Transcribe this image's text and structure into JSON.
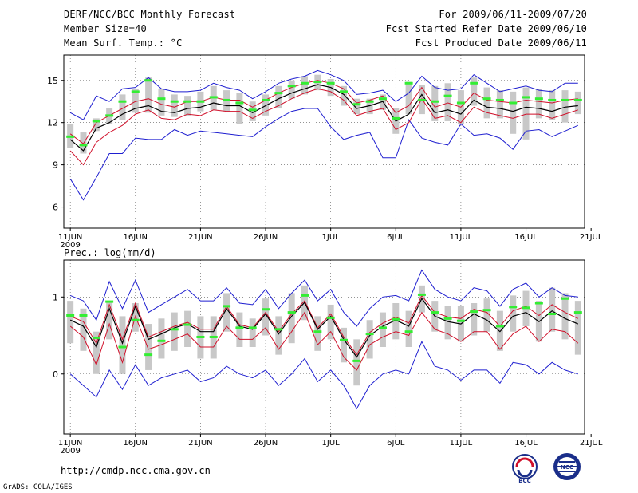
{
  "header": {
    "title": "DERF/NCC/BCC Monthly Forecast",
    "member_size": "Member Size=40",
    "variable": "Mean Surf. Temp.: °C",
    "forecast_period": "For 2009/06/11-2009/07/20",
    "start_date": "Fcst Started Refer Date 2009/06/10",
    "produced_date": "Fcst Produced Date 2009/06/11"
  },
  "footer": {
    "url": "http://cmdp.ncc.cma.gov.cn",
    "credit": "GrADS: COLA/IGES",
    "logo_left": "BCC",
    "logo_right": "NCC"
  },
  "colors": {
    "ensemble_mean": "#000000",
    "spread": "#d0102a",
    "extreme": "#1f1fd0",
    "member_box": "#c8c8c8",
    "median": "#33ee33",
    "grid": "#555555"
  },
  "chart_data": [
    {
      "name": "temperature",
      "type": "line",
      "title": "Mean Surf. Temp.: °C",
      "ylabel": "°C",
      "ylim": [
        4.5,
        16.8
      ],
      "yticks": [
        6,
        9,
        12,
        15
      ],
      "xlim": [
        0.5,
        40.5
      ],
      "xticks": [
        {
          "day": 1,
          "label": "11JUN",
          "sub": "2009"
        },
        {
          "day": 6,
          "label": "16JUN"
        },
        {
          "day": 11,
          "label": "21JUN"
        },
        {
          "day": 16,
          "label": "26JUN"
        },
        {
          "day": 21,
          "label": "1JUL"
        },
        {
          "day": 26,
          "label": "6JUL"
        },
        {
          "day": 31,
          "label": "11JUL"
        },
        {
          "day": 36,
          "label": "16JUL"
        },
        {
          "day": 41,
          "label": "21JUL"
        }
      ],
      "days": [
        1,
        2,
        3,
        4,
        5,
        6,
        7,
        8,
        9,
        10,
        11,
        12,
        13,
        14,
        15,
        16,
        17,
        18,
        19,
        20,
        21,
        22,
        23,
        24,
        25,
        26,
        27,
        28,
        29,
        30,
        31,
        32,
        33,
        34,
        35,
        36,
        37,
        38,
        39,
        40
      ],
      "series": [
        {
          "name": "ensemble mean",
          "role": "mean",
          "values": [
            10.8,
            10.0,
            11.6,
            12.0,
            12.6,
            13.0,
            13.2,
            12.8,
            12.7,
            13.0,
            13.1,
            13.4,
            13.2,
            13.2,
            12.7,
            13.2,
            13.7,
            14.1,
            14.4,
            14.7,
            14.5,
            14.0,
            13.0,
            13.2,
            13.5,
            12.1,
            12.6,
            14.0,
            12.7,
            12.9,
            12.6,
            13.6,
            13.1,
            13.0,
            12.8,
            13.1,
            13.0,
            12.8,
            13.1,
            13.2
          ]
        },
        {
          "name": "mean + spread",
          "role": "upper",
          "values": [
            11.2,
            10.5,
            12.0,
            12.5,
            13.0,
            13.5,
            13.7,
            13.3,
            13.1,
            13.5,
            13.5,
            13.8,
            13.6,
            13.6,
            13.1,
            13.6,
            14.1,
            14.5,
            14.8,
            15.0,
            14.8,
            14.4,
            13.4,
            13.6,
            13.9,
            12.7,
            13.2,
            14.5,
            13.1,
            13.4,
            13.1,
            14.1,
            13.6,
            13.5,
            13.4,
            13.6,
            13.5,
            13.4,
            13.6,
            13.7
          ]
        },
        {
          "name": "mean - spread",
          "role": "lower",
          "values": [
            10.0,
            9.0,
            10.6,
            11.3,
            11.8,
            12.6,
            12.9,
            12.3,
            12.2,
            12.6,
            12.5,
            12.9,
            12.8,
            12.8,
            12.3,
            12.8,
            13.2,
            13.7,
            14.1,
            14.4,
            14.2,
            13.6,
            12.5,
            12.8,
            13.0,
            11.5,
            12.0,
            13.7,
            12.3,
            12.5,
            12.0,
            13.1,
            12.7,
            12.5,
            12.3,
            12.6,
            12.6,
            12.3,
            12.6,
            12.9
          ]
        },
        {
          "name": "ensemble maximum",
          "role": "max",
          "values": [
            12.7,
            12.2,
            13.9,
            13.5,
            14.4,
            14.5,
            15.2,
            14.4,
            14.2,
            14.2,
            14.3,
            14.8,
            14.5,
            14.3,
            13.7,
            14.2,
            14.8,
            15.1,
            15.3,
            15.7,
            15.4,
            15.0,
            14.0,
            14.1,
            14.3,
            13.5,
            14.1,
            15.3,
            14.5,
            14.3,
            14.4,
            15.4,
            14.8,
            14.2,
            14.4,
            14.6,
            14.3,
            14.2,
            14.8,
            14.8
          ]
        },
        {
          "name": "ensemble minimum",
          "role": "min",
          "values": [
            8.0,
            6.5,
            8.1,
            9.8,
            9.8,
            10.9,
            10.8,
            10.8,
            11.5,
            11.1,
            11.4,
            11.3,
            11.2,
            11.1,
            11.0,
            11.7,
            12.3,
            12.8,
            13.0,
            13.0,
            11.7,
            10.8,
            11.1,
            11.3,
            9.5,
            9.5,
            12.2,
            10.9,
            10.6,
            10.4,
            11.9,
            11.1,
            11.2,
            10.9,
            10.1,
            11.4,
            11.5,
            11.0,
            11.4,
            11.8
          ]
        },
        {
          "name": "ensemble median",
          "role": "median",
          "values": [
            11.0,
            10.4,
            12.1,
            12.5,
            13.5,
            14.2,
            15.0,
            13.7,
            13.5,
            13.5,
            13.5,
            13.8,
            13.6,
            13.4,
            12.9,
            13.6,
            14.1,
            14.6,
            14.8,
            14.9,
            14.8,
            14.2,
            13.3,
            13.5,
            13.7,
            12.3,
            14.8,
            13.6,
            13.5,
            13.9,
            13.4,
            14.8,
            13.7,
            13.6,
            13.4,
            13.8,
            13.7,
            13.6,
            13.6,
            13.6
          ]
        },
        {
          "name": "box top",
          "role": "q3",
          "values": [
            11.9,
            11.3,
            12.3,
            13.0,
            14.0,
            14.4,
            15.2,
            14.4,
            14.0,
            13.9,
            14.2,
            14.6,
            14.3,
            14.1,
            13.5,
            14.0,
            14.6,
            15.0,
            15.3,
            15.4,
            15.1,
            14.6,
            13.7,
            13.7,
            14.0,
            13.0,
            14.9,
            14.7,
            14.6,
            14.8,
            14.3,
            15.2,
            14.5,
            14.3,
            14.2,
            14.5,
            14.4,
            14.3,
            14.3,
            14.2
          ]
        },
        {
          "name": "box bottom",
          "role": "q1",
          "values": [
            10.2,
            9.8,
            11.4,
            11.9,
            12.2,
            12.7,
            12.7,
            12.5,
            12.4,
            12.5,
            12.8,
            12.9,
            12.8,
            11.9,
            12.1,
            12.5,
            13.0,
            13.7,
            14.0,
            14.3,
            13.9,
            13.2,
            12.6,
            12.6,
            12.9,
            11.2,
            12.6,
            12.6,
            12.1,
            12.1,
            11.9,
            13.2,
            12.3,
            12.3,
            11.2,
            10.8,
            12.3,
            12.2,
            12.0,
            12.6
          ]
        }
      ]
    },
    {
      "name": "precipitation",
      "type": "line",
      "title": "Prec.: log(mm/d)",
      "ylabel": "log(mm/d)",
      "ylim": [
        -0.78,
        1.48
      ],
      "yticks": [
        0,
        1
      ],
      "xlim": [
        0.5,
        40.5
      ],
      "xticks": [
        {
          "day": 1,
          "label": "11JUN",
          "sub": "2009"
        },
        {
          "day": 6,
          "label": "16JUN"
        },
        {
          "day": 11,
          "label": "21JUN"
        },
        {
          "day": 16,
          "label": "26JUN"
        },
        {
          "day": 21,
          "label": "1JUL"
        },
        {
          "day": 26,
          "label": "6JUL"
        },
        {
          "day": 31,
          "label": "11JUL"
        },
        {
          "day": 36,
          "label": "16JUL"
        },
        {
          "day": 41,
          "label": "21JUL"
        }
      ],
      "days": [
        1,
        2,
        3,
        4,
        5,
        6,
        7,
        8,
        9,
        10,
        11,
        12,
        13,
        14,
        15,
        16,
        17,
        18,
        19,
        20,
        21,
        22,
        23,
        24,
        25,
        26,
        27,
        28,
        29,
        30,
        31,
        32,
        33,
        34,
        35,
        36,
        37,
        38,
        39,
        40
      ],
      "series": [
        {
          "name": "ensemble mean",
          "role": "mean",
          "values": [
            0.7,
            0.62,
            0.35,
            0.85,
            0.4,
            0.88,
            0.45,
            0.52,
            0.6,
            0.65,
            0.55,
            0.55,
            0.85,
            0.62,
            0.58,
            0.78,
            0.52,
            0.75,
            0.93,
            0.58,
            0.75,
            0.45,
            0.22,
            0.5,
            0.62,
            0.7,
            0.62,
            0.98,
            0.75,
            0.68,
            0.65,
            0.78,
            0.7,
            0.55,
            0.75,
            0.8,
            0.68,
            0.82,
            0.72,
            0.65
          ]
        },
        {
          "name": "mean + spread",
          "role": "upper",
          "values": [
            0.75,
            0.68,
            0.4,
            0.9,
            0.45,
            0.92,
            0.48,
            0.55,
            0.62,
            0.67,
            0.58,
            0.58,
            0.88,
            0.64,
            0.6,
            0.8,
            0.55,
            0.78,
            0.95,
            0.6,
            0.78,
            0.48,
            0.25,
            0.54,
            0.66,
            0.74,
            0.66,
            1.02,
            0.8,
            0.74,
            0.72,
            0.84,
            0.8,
            0.62,
            0.82,
            0.88,
            0.76,
            0.9,
            0.8,
            0.72
          ]
        },
        {
          "name": "mean - spread",
          "role": "lower",
          "values": [
            0.62,
            0.48,
            0.12,
            0.65,
            0.15,
            0.75,
            0.32,
            0.38,
            0.45,
            0.52,
            0.35,
            0.35,
            0.62,
            0.45,
            0.45,
            0.6,
            0.32,
            0.55,
            0.8,
            0.38,
            0.55,
            0.22,
            0.05,
            0.38,
            0.48,
            0.55,
            0.5,
            0.8,
            0.58,
            0.52,
            0.42,
            0.55,
            0.55,
            0.32,
            0.52,
            0.62,
            0.42,
            0.58,
            0.55,
            0.4
          ]
        },
        {
          "name": "ensemble maximum",
          "role": "max",
          "values": [
            1.02,
            0.95,
            0.7,
            1.2,
            0.85,
            1.22,
            0.8,
            0.9,
            1.0,
            1.1,
            0.95,
            0.95,
            1.12,
            0.92,
            0.9,
            1.1,
            0.85,
            1.05,
            1.22,
            0.95,
            1.1,
            0.8,
            0.62,
            0.85,
            1.0,
            1.02,
            0.95,
            1.35,
            1.1,
            1.0,
            0.95,
            1.12,
            1.08,
            0.88,
            1.1,
            1.18,
            1.0,
            1.12,
            1.02,
            1.0
          ]
        },
        {
          "name": "ensemble minimum",
          "role": "min",
          "values": [
            0.0,
            -0.15,
            -0.3,
            0.05,
            -0.2,
            0.12,
            -0.15,
            -0.05,
            0.0,
            0.05,
            -0.1,
            -0.05,
            0.1,
            0.0,
            -0.05,
            0.05,
            -0.15,
            0.0,
            0.2,
            -0.1,
            0.05,
            -0.15,
            -0.45,
            -0.15,
            0.0,
            0.05,
            0.0,
            0.42,
            0.1,
            0.05,
            -0.08,
            0.05,
            0.05,
            -0.12,
            0.15,
            0.12,
            0.0,
            0.15,
            0.05,
            0.0
          ]
        },
        {
          "name": "ensemble median",
          "role": "median",
          "values": [
            0.76,
            0.76,
            0.47,
            0.94,
            0.35,
            0.7,
            0.25,
            0.43,
            0.58,
            0.64,
            0.48,
            0.48,
            0.88,
            0.6,
            0.6,
            0.84,
            0.58,
            0.8,
            1.02,
            0.55,
            0.73,
            0.44,
            0.17,
            0.52,
            0.6,
            0.71,
            0.55,
            1.03,
            0.8,
            0.72,
            0.69,
            0.81,
            0.83,
            0.62,
            0.87,
            0.86,
            0.92,
            0.78,
            0.98,
            0.8
          ]
        },
        {
          "name": "box top",
          "role": "q3",
          "values": [
            0.95,
            0.85,
            0.55,
            0.95,
            0.75,
            0.92,
            0.65,
            0.72,
            0.8,
            0.82,
            0.75,
            0.75,
            1.05,
            0.8,
            0.72,
            0.98,
            0.75,
            1.05,
            1.15,
            0.75,
            0.9,
            0.6,
            0.45,
            0.7,
            0.8,
            0.92,
            0.82,
            1.15,
            0.95,
            0.88,
            0.88,
            0.92,
            0.98,
            0.82,
            1.02,
            1.08,
            0.95,
            1.12,
            1.05,
            0.95
          ]
        },
        {
          "name": "box bottom",
          "role": "q1",
          "values": [
            0.4,
            0.3,
            0.0,
            0.45,
            0.0,
            0.55,
            0.05,
            0.2,
            0.3,
            0.35,
            0.2,
            0.2,
            0.55,
            0.35,
            0.35,
            0.5,
            0.25,
            0.4,
            0.7,
            0.3,
            0.45,
            0.15,
            -0.15,
            0.2,
            0.35,
            0.45,
            0.35,
            0.8,
            0.55,
            0.45,
            0.42,
            0.5,
            0.55,
            0.3,
            0.55,
            0.62,
            0.42,
            0.55,
            0.45,
            0.25
          ]
        }
      ]
    }
  ]
}
